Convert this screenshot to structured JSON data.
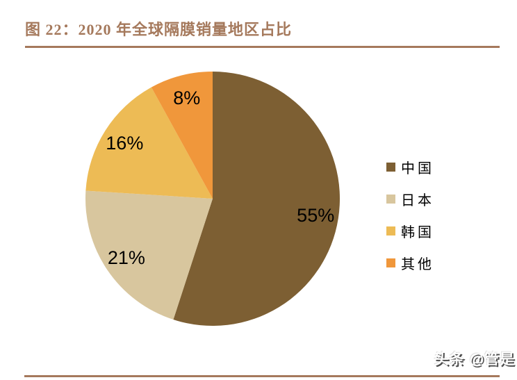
{
  "figure": {
    "title": "图 22：2020 年全球隔膜销量地区占比",
    "accent_color": "#A5795C"
  },
  "chart_data": {
    "type": "pie",
    "title": "2020 年全球隔膜销量地区占比",
    "categories": [
      "中国",
      "日本",
      "韩国",
      "其他"
    ],
    "values": [
      55,
      21,
      16,
      8
    ],
    "data_labels": [
      "55%",
      "21%",
      "16%",
      "8%"
    ],
    "colors": [
      "#7D5F33",
      "#D8C69E",
      "#EDBB55",
      "#F0973B"
    ],
    "start_angle_deg": 0,
    "direction": "clockwise",
    "legend_position": "right",
    "data_label_color": "#000000"
  },
  "watermark": {
    "text": "头条 @管是"
  }
}
